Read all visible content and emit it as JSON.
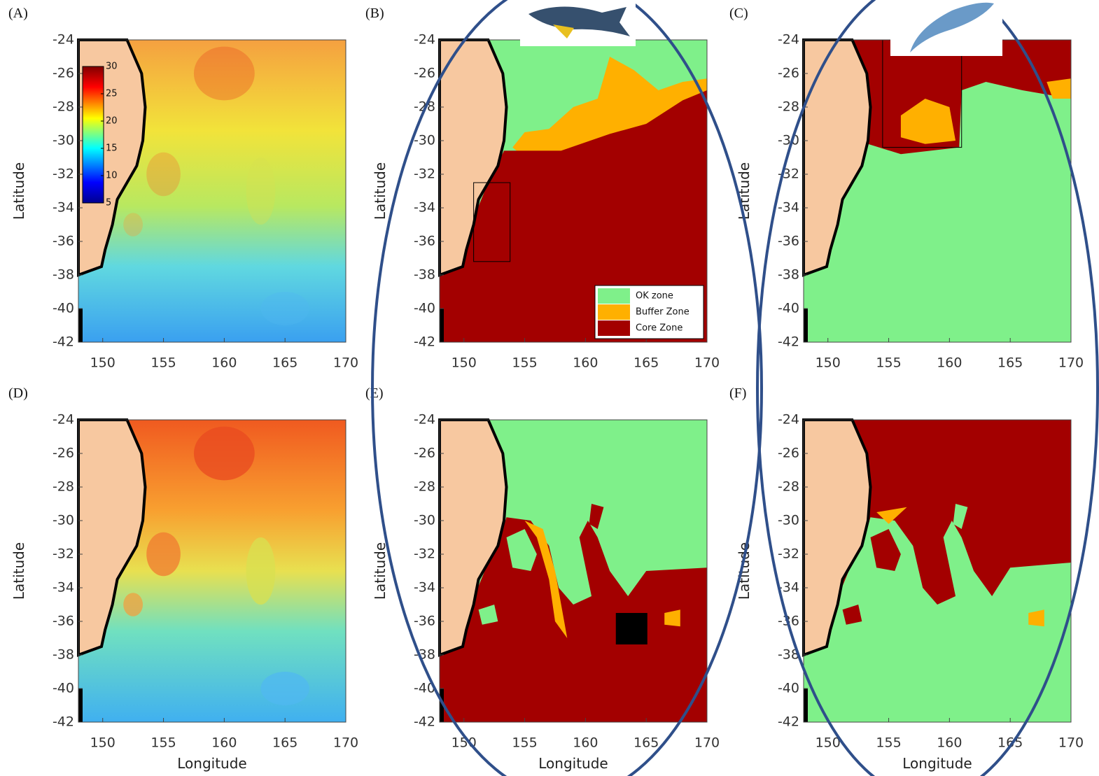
{
  "figure": {
    "xlim": [
      148,
      170
    ],
    "ylim": [
      -42,
      -24
    ],
    "xticks": [
      150,
      155,
      160,
      165,
      170
    ],
    "yticks": [
      -24,
      -26,
      -28,
      -30,
      -32,
      -34,
      -36,
      -38,
      -40,
      -42
    ],
    "panels": [
      {
        "label": "(A)",
        "ylabel": "Latitude"
      },
      {
        "label": "(B)",
        "ylabel": "Latitude"
      },
      {
        "label": "(C)",
        "ylabel": "Latitude"
      },
      {
        "label": "(D)",
        "ylabel": "Latitude",
        "xlabel": "Longitude"
      },
      {
        "label": "(E)",
        "ylabel": "Latitude",
        "xlabel": "Longitude"
      },
      {
        "label": "(F)",
        "ylabel": "Latitude",
        "xlabel": "Longitude"
      }
    ],
    "colorbar": {
      "lim": [
        5,
        30
      ],
      "ticks": [
        5,
        10,
        15,
        20,
        25,
        30
      ]
    },
    "legend": {
      "entries": [
        {
          "name": "OK zone",
          "color": "#7ff08a"
        },
        {
          "name": "Buffer Zone",
          "color": "#ffb000"
        },
        {
          "name": "Core Zone",
          "color": "#a30000"
        }
      ]
    }
  }
}
